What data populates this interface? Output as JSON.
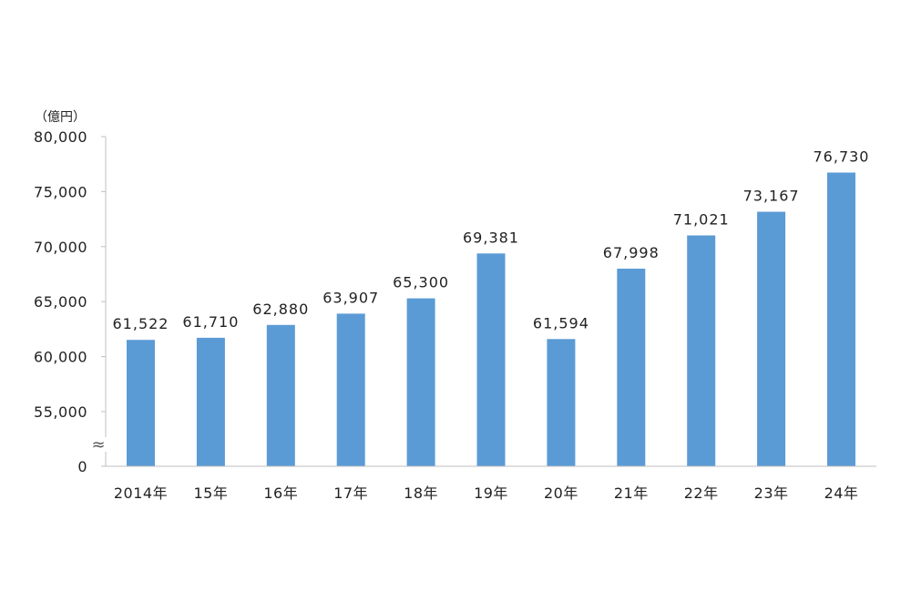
{
  "chart_data": {
    "type": "bar",
    "unit_label": "（億円）",
    "categories": [
      "2014年",
      "15年",
      "16年",
      "17年",
      "18年",
      "19年",
      "20年",
      "21年",
      "22年",
      "23年",
      "24年"
    ],
    "values": [
      61522,
      61710,
      62880,
      63907,
      65300,
      69381,
      61594,
      67998,
      71021,
      73167,
      76730
    ],
    "value_labels": [
      "61,522",
      "61,710",
      "62,880",
      "63,907",
      "65,300",
      "69,381",
      "61,594",
      "67,998",
      "71,021",
      "73,167",
      "76,730"
    ],
    "y_ticks": [
      {
        "value": 0,
        "label": "0"
      },
      {
        "value": 55000,
        "label": "55,000"
      },
      {
        "value": 60000,
        "label": "60,000"
      },
      {
        "value": 65000,
        "label": "65,000"
      },
      {
        "value": 70000,
        "label": "70,000"
      },
      {
        "value": 75000,
        "label": "75,000"
      },
      {
        "value": 80000,
        "label": "80,000"
      }
    ],
    "axis_break": "≈",
    "ylim": [
      50000,
      80000
    ],
    "grid": false,
    "bar_color": "#5b9bd5"
  }
}
